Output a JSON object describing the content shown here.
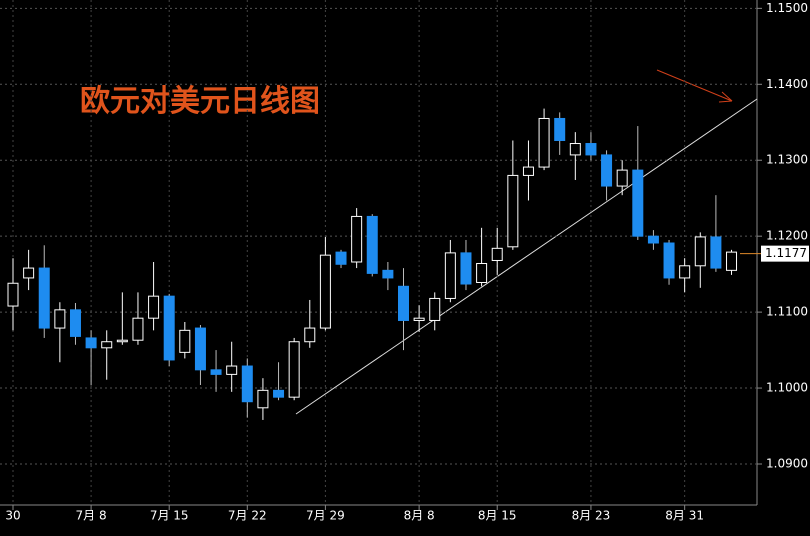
{
  "chart_data": {
    "type": "candlestick",
    "title": "欧元对美元日线图",
    "categories": [
      "30",
      null,
      null,
      null,
      null,
      "7月 8",
      null,
      null,
      null,
      null,
      "7月 15",
      null,
      null,
      null,
      null,
      "7月 22",
      null,
      null,
      null,
      null,
      "7月 29",
      null,
      null,
      null,
      null,
      null,
      "8月 8",
      null,
      null,
      null,
      null,
      "8月 15",
      null,
      null,
      null,
      null,
      null,
      "8月 23",
      null,
      null,
      null,
      null,
      null,
      "8月 31",
      null,
      null,
      null
    ],
    "open": [
      1.1108,
      1.1145,
      1.1158,
      1.1079,
      1.1103,
      1.1066,
      1.1053,
      1.1061,
      1.1063,
      1.1092,
      1.1121,
      1.1047,
      1.1079,
      1.1024,
      1.1018,
      1.1029,
      1.0974,
      1.0997,
      1.0988,
      1.1061,
      1.1079,
      1.1179,
      1.1166,
      1.1226,
      1.1155,
      1.1134,
      1.1089,
      1.1089,
      1.1118,
      1.1178,
      1.1139,
      1.1168,
      1.1186,
      1.128,
      1.1291,
      1.1355,
      1.1307,
      1.1322,
      1.1307,
      1.1266,
      1.1287,
      1.12,
      1.1191,
      1.1145,
      1.1161,
      1.1199,
      1.1155
    ],
    "high": [
      1.1171,
      1.1182,
      1.1188,
      1.1113,
      1.1112,
      1.1076,
      1.1076,
      1.1126,
      1.1126,
      1.1166,
      1.1124,
      1.1087,
      1.1083,
      1.105,
      1.1061,
      1.1039,
      1.1013,
      1.1034,
      1.1066,
      1.1116,
      1.1199,
      1.1182,
      1.1237,
      1.1229,
      1.1166,
      1.1158,
      1.1109,
      1.1126,
      1.1195,
      1.1195,
      1.1211,
      1.1211,
      1.1326,
      1.1326,
      1.1368,
      1.1363,
      1.1337,
      1.1337,
      1.1313,
      1.13,
      1.1345,
      1.1208,
      1.1195,
      1.1171,
      1.1205,
      1.1254,
      1.1182
    ],
    "low": [
      1.1076,
      1.1129,
      1.1066,
      1.1034,
      1.1057,
      1.1004,
      1.1011,
      1.1057,
      1.1057,
      1.1076,
      1.1029,
      1.1039,
      1.1004,
      1.0995,
      1.0995,
      1.0961,
      1.0958,
      1.0984,
      1.0984,
      1.1053,
      1.1076,
      1.1158,
      1.1158,
      1.1147,
      1.1129,
      1.105,
      1.1074,
      1.1076,
      1.1113,
      1.1129,
      1.1134,
      1.1149,
      1.1182,
      1.1247,
      1.1287,
      1.1307,
      1.1274,
      1.13,
      1.1247,
      1.1254,
      1.1195,
      1.1182,
      1.1136,
      1.1126,
      1.1132,
      1.1153,
      1.1149
    ],
    "close": [
      1.1138,
      1.1158,
      1.1079,
      1.1103,
      1.1068,
      1.1053,
      1.1061,
      1.1063,
      1.1092,
      1.1121,
      1.1037,
      1.1076,
      1.1024,
      1.1018,
      1.1029,
      1.0982,
      1.0997,
      1.0988,
      1.1061,
      1.1079,
      1.1175,
      1.1163,
      1.1226,
      1.1151,
      1.1145,
      1.1089,
      1.1092,
      1.1118,
      1.1178,
      1.1137,
      1.1164,
      1.1184,
      1.128,
      1.1291,
      1.1355,
      1.1326,
      1.1322,
      1.1307,
      1.1266,
      1.1287,
      1.12,
      1.1191,
      1.1145,
      1.1161,
      1.1199,
      1.1158,
      1.1179
    ],
    "up_color": "#ffffff",
    "down_color": "#1e8cf0",
    "last_price": 1.1177,
    "ylim": [
      1.0846,
      1.1511
    ],
    "yticks": [
      {
        "value": 1.09,
        "label": "1.0900"
      },
      {
        "value": 1.1,
        "label": "1.1000"
      },
      {
        "value": 1.11,
        "label": "1.1100"
      },
      {
        "value": 1.12,
        "label": "1.1200"
      },
      {
        "value": 1.13,
        "label": "1.1300"
      },
      {
        "value": 1.14,
        "label": "1.1400"
      },
      {
        "value": 1.15,
        "label": "1.1500"
      }
    ],
    "grid": true
  }
}
